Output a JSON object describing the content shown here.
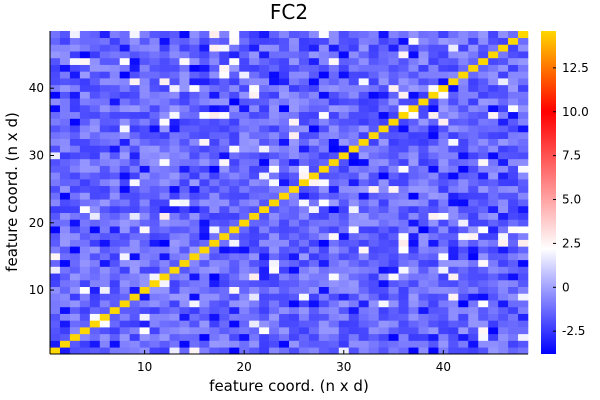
{
  "chart_data": {
    "type": "heatmap",
    "title": "FC2",
    "xlabel": "feature coord. (n x d)",
    "ylabel": "feature coord. (n x d)",
    "n": 48,
    "xlim": [
      0.5,
      48.5
    ],
    "ylim": [
      0.5,
      48.5
    ],
    "x_ticks": [
      10,
      20,
      30,
      40
    ],
    "y_ticks": [
      10,
      20,
      30,
      40
    ],
    "diagonal_value": 14.6,
    "off_diagonal_range": [
      -3.8,
      0.8
    ],
    "colorbar": {
      "min": -3.8,
      "max": 14.6,
      "ticks": [
        -2.5,
        0,
        2.5,
        5.0,
        7.5,
        10.0,
        12.5
      ],
      "tick_labels": [
        "-2.5",
        "0",
        "2.5",
        "5.0",
        "7.5",
        "10.0",
        "12.5"
      ],
      "colormap": [
        {
          "value": -3.8,
          "color": "#0000ff"
        },
        {
          "value": 2.2,
          "color": "#ffffff"
        },
        {
          "value": 10.0,
          "color": "#ff0000"
        },
        {
          "value": 14.6,
          "color": "#ffd700"
        }
      ]
    },
    "grid": false,
    "legend": "colorbar-right"
  }
}
